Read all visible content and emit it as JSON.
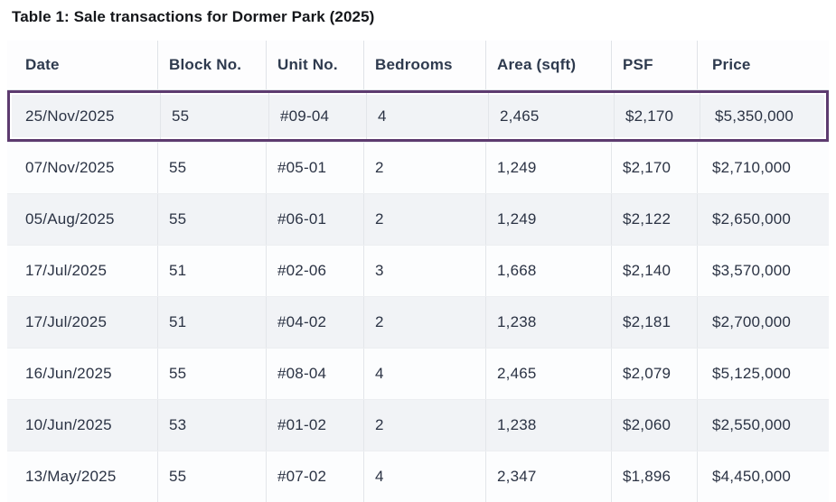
{
  "title": "Table 1: Sale transactions for Dormer Park (2025)",
  "table": {
    "columns": [
      "Date",
      "Block No.",
      "Unit No.",
      "Bedrooms",
      "Area (sqft)",
      "PSF",
      "Price"
    ],
    "rows": [
      {
        "date": "25/Nov/2025",
        "block_no": "55",
        "unit_no": "#09-04",
        "bedrooms": "4",
        "area_sqft": "2,465",
        "psf": "$2,170",
        "price": "$5,350,000",
        "highlighted": true
      },
      {
        "date": "07/Nov/2025",
        "block_no": "55",
        "unit_no": "#05-01",
        "bedrooms": "2",
        "area_sqft": "1,249",
        "psf": "$2,170",
        "price": "$2,710,000",
        "highlighted": false
      },
      {
        "date": "05/Aug/2025",
        "block_no": "55",
        "unit_no": "#06-01",
        "bedrooms": "2",
        "area_sqft": "1,249",
        "psf": "$2,122",
        "price": "$2,650,000",
        "highlighted": false
      },
      {
        "date": "17/Jul/2025",
        "block_no": "51",
        "unit_no": "#02-06",
        "bedrooms": "3",
        "area_sqft": "1,668",
        "psf": "$2,140",
        "price": "$3,570,000",
        "highlighted": false
      },
      {
        "date": "17/Jul/2025",
        "block_no": "51",
        "unit_no": "#04-02",
        "bedrooms": "2",
        "area_sqft": "1,238",
        "psf": "$2,181",
        "price": "$2,700,000",
        "highlighted": false
      },
      {
        "date": "16/Jun/2025",
        "block_no": "55",
        "unit_no": "#08-04",
        "bedrooms": "4",
        "area_sqft": "2,465",
        "psf": "$2,079",
        "price": "$5,125,000",
        "highlighted": false
      },
      {
        "date": "10/Jun/2025",
        "block_no": "53",
        "unit_no": "#01-02",
        "bedrooms": "2",
        "area_sqft": "1,238",
        "psf": "$2,060",
        "price": "$2,550,000",
        "highlighted": false
      },
      {
        "date": "13/May/2025",
        "block_no": "55",
        "unit_no": "#07-02",
        "bedrooms": "4",
        "area_sqft": "2,347",
        "psf": "$1,896",
        "price": "$4,450,000",
        "highlighted": false
      }
    ]
  },
  "colors": {
    "highlight_border": "#5d3b6f",
    "header_text": "#2e3a4e",
    "cell_text": "#2b3344",
    "alt_row_bg": "#f1f3f6",
    "row_bg": "#fcfdfe"
  }
}
